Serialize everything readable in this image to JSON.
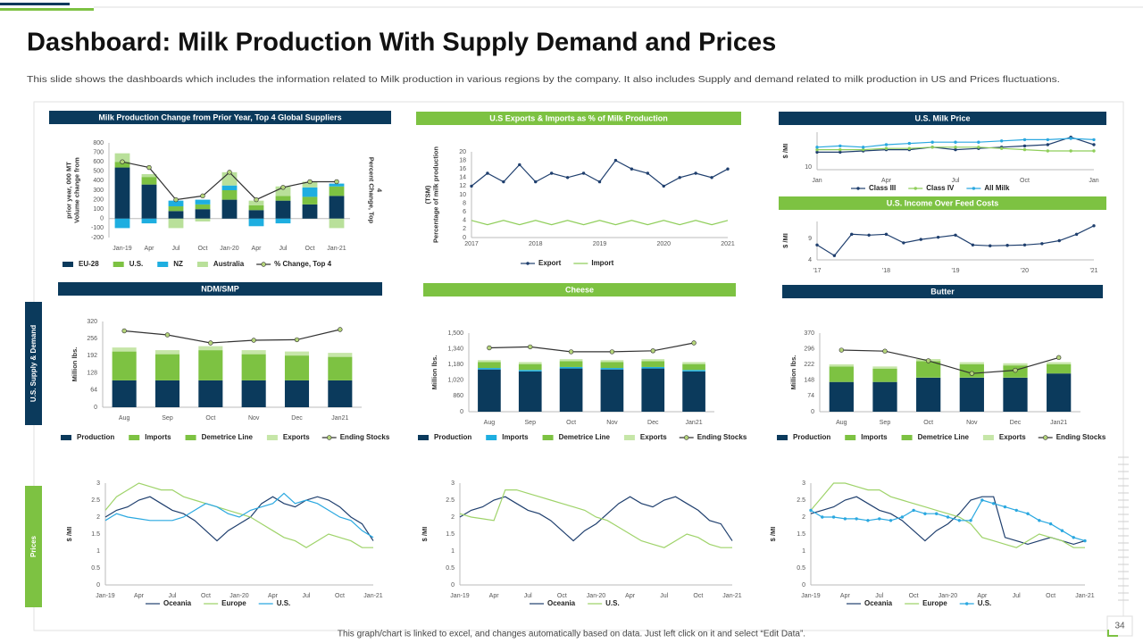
{
  "title": "Dashboard: Milk Production With Supply Demand and Prices",
  "subtitle": "This slide shows the dashboards which includes the information related to Milk production in various regions by the company. It also includes Supply and demand related to milk production in US and Prices fluctuations.",
  "side_labels": [
    "U.S. Supply & Demand",
    "Prices"
  ],
  "footer": "This graph/chart is linked to excel, and changes automatically based on data. Just left click on it and select “Edit Data”.",
  "page_number": 34,
  "chart_data": [
    {
      "type": "combo",
      "title": "Milk Production Change from Prior Year, Top 4 Global Suppliers",
      "header_color": "#0b3a5c",
      "ylabel": [
        "Volume change from",
        "prior year, 000 MT"
      ],
      "y2label": [
        "Percent Change, Top",
        "4"
      ],
      "categories": [
        "Jan-19",
        "Apr",
        "Jul",
        "Oct",
        "Jan-20",
        "Apr",
        "Jul",
        "Oct",
        "Jan-21"
      ],
      "ylim": [
        -200,
        800
      ],
      "yticks": [
        -200,
        -100,
        0,
        100,
        200,
        300,
        400,
        500,
        600,
        700,
        800
      ],
      "series": [
        {
          "name": "EU-28",
          "type": "bar",
          "color": "#0b3a5c",
          "values": [
            540,
            360,
            80,
            100,
            200,
            90,
            190,
            150,
            240
          ]
        },
        {
          "name": "U.S.",
          "type": "bar",
          "color": "#7dc242",
          "values": [
            60,
            80,
            50,
            50,
            100,
            50,
            50,
            80,
            100
          ]
        },
        {
          "name": "NZ",
          "type": "bar",
          "color": "#1eaee0",
          "values": [
            -100,
            -50,
            60,
            50,
            50,
            -80,
            -50,
            100,
            30
          ]
        },
        {
          "name": "Australia",
          "type": "bar",
          "color": "#b9e09a",
          "values": [
            90,
            30,
            -100,
            -30,
            140,
            50,
            100,
            60,
            -100
          ]
        },
        {
          "name": "% Change, Top 4",
          "type": "line",
          "marker": true,
          "color": "#333333",
          "values": [
            600,
            540,
            200,
            240,
            490,
            200,
            330,
            390,
            390
          ]
        }
      ]
    },
    {
      "type": "line",
      "title": "U.S Exports & Imports as % of Milk Production",
      "header_color": "#7dc242",
      "ylabel": [
        "Percentage of milk production",
        "(TSM)"
      ],
      "x": [
        2017,
        2017.25,
        2017.5,
        2017.75,
        2018,
        2018.25,
        2018.5,
        2018.75,
        2019,
        2019.25,
        2019.5,
        2019.75,
        2020,
        2020.25,
        2020.5,
        2020.75,
        2021
      ],
      "xlim": [
        2017,
        2021
      ],
      "xticks": [
        2017,
        2018,
        2019,
        2020,
        2021
      ],
      "ylim": [
        0,
        20
      ],
      "yticks": [
        0,
        2,
        4,
        6,
        8,
        10,
        12,
        14,
        16,
        18,
        20
      ],
      "series": [
        {
          "name": "Export",
          "type": "line",
          "marker": true,
          "color": "#1f3f6e",
          "values": [
            12,
            15,
            13,
            17,
            13,
            15,
            14,
            15,
            13,
            18,
            16,
            15,
            12,
            14,
            15,
            14,
            16
          ]
        },
        {
          "name": "Import",
          "type": "line",
          "color": "#8fce5a",
          "values": [
            4,
            3,
            4,
            3,
            4,
            3,
            4,
            3,
            4,
            3,
            4,
            3,
            4,
            3,
            4,
            3,
            4
          ]
        }
      ]
    },
    {
      "type": "line",
      "title": "U.S. Milk Price",
      "header_color": "#0b3a5c",
      "ylabel": [
        "$ /MI"
      ],
      "categories": [
        "Jan",
        null,
        null,
        "Apr",
        null,
        null,
        "Jul",
        null,
        null,
        "Oct",
        null,
        null,
        "Jan"
      ],
      "ylim": [
        9,
        24
      ],
      "yticks": [
        10
      ],
      "series": [
        {
          "name": "Class III",
          "type": "line",
          "marker": true,
          "color": "#1f3f6e",
          "values": [
            16,
            16,
            16.5,
            17,
            17,
            18,
            17,
            17.5,
            18,
            18.5,
            19,
            22,
            19
          ]
        },
        {
          "name": "Class IV",
          "type": "line",
          "marker": true,
          "color": "#8fce5a",
          "values": [
            17,
            17,
            17,
            17.5,
            17.5,
            18,
            18,
            18,
            17.5,
            17,
            16.5,
            16.5,
            16.5
          ]
        },
        {
          "name": "All Milk",
          "type": "line",
          "marker": true,
          "color": "#2aa8e0",
          "values": [
            18,
            18.5,
            18,
            19,
            19.5,
            20,
            20,
            20,
            20.5,
            21,
            21,
            21.5,
            21
          ]
        }
      ]
    },
    {
      "type": "line",
      "title": "U.S. Income Over Feed Costs",
      "header_color": "#7dc242",
      "ylabel": [
        "$ /MI"
      ],
      "categories": [
        "'17",
        null,
        null,
        null,
        "'18",
        null,
        null,
        null,
        "'19",
        null,
        null,
        null,
        "'20",
        null,
        null,
        null,
        "'21"
      ],
      "ylim": [
        4,
        13
      ],
      "yticks": [
        4,
        9
      ],
      "series": [
        {
          "name": "Income Over Feed Costs",
          "type": "line",
          "marker": true,
          "legend": false,
          "color": "#1f3f6e",
          "values": [
            7.5,
            5,
            10,
            9.8,
            10,
            8,
            8.8,
            9.3,
            9.8,
            7.5,
            7.3,
            7.4,
            7.5,
            7.8,
            8.5,
            10,
            12
          ]
        }
      ]
    },
    {
      "type": "combo",
      "title": "NDM/SMP",
      "header_color": "#0b3a5c",
      "ylabel": [
        "Million lbs."
      ],
      "categories": [
        "Aug",
        "Sep",
        "Oct",
        "Nov",
        "Dec",
        "Jan21"
      ],
      "ylim": [
        0,
        320
      ],
      "yticks": [
        0,
        64,
        128,
        192,
        256,
        320
      ],
      "series": [
        {
          "name": "Production",
          "type": "bar",
          "color": "#0b3a5c",
          "values": [
            100,
            100,
            100,
            100,
            100,
            100
          ]
        },
        {
          "name": "Imports",
          "type": "bar",
          "color": "#7dc242",
          "values": [
            3,
            3,
            3,
            3,
            3,
            3
          ]
        },
        {
          "name": "Demetrice Line",
          "type": "bar",
          "color": "#7dc242",
          "values": [
            105,
            95,
            110,
            95,
            90,
            85
          ]
        },
        {
          "name": "Exports",
          "type": "bar",
          "color": "#c6e6a8",
          "values": [
            15,
            15,
            15,
            15,
            15,
            15
          ]
        },
        {
          "name": "Ending Stocks",
          "type": "line",
          "marker": true,
          "color": "#333333",
          "values": [
            285,
            270,
            240,
            250,
            252,
            290
          ]
        }
      ]
    },
    {
      "type": "combo",
      "title": "Cheese",
      "header_color": "#7dc242",
      "ylabel": [
        "Million lbs."
      ],
      "categories": [
        "Aug",
        "Sep",
        "Oct",
        "Nov",
        "Dec",
        "Jan21"
      ],
      "ylim": [
        700,
        1500
      ],
      "ybreak_label": 0,
      "yticks": [
        860,
        {
          "value": 1020,
          "label": "1,020"
        },
        {
          "value": 1180,
          "label": "1,180"
        },
        {
          "value": 1340,
          "label": "1,340"
        },
        {
          "value": 1500,
          "label": "1,500"
        }
      ],
      "series": [
        {
          "name": "Production",
          "type": "bar",
          "color": "#0b3a5c",
          "values": [
            430,
            410,
            440,
            430,
            440,
            410
          ]
        },
        {
          "name": "Imports",
          "type": "bar",
          "color": "#1eaee0",
          "values": [
            15,
            15,
            15,
            15,
            15,
            15
          ]
        },
        {
          "name": "Demetrice Line",
          "type": "bar",
          "color": "#7dc242",
          "values": [
            60,
            60,
            60,
            60,
            60,
            60
          ]
        },
        {
          "name": "Exports",
          "type": "bar",
          "color": "#c6e6a8",
          "values": [
            20,
            20,
            20,
            20,
            20,
            20
          ]
        },
        {
          "name": "Ending Stocks",
          "type": "line",
          "marker": true,
          "color": "#333333",
          "values": [
            1350,
            1360,
            1310,
            1310,
            1320,
            1400
          ]
        }
      ]
    },
    {
      "type": "combo",
      "title": "Butter",
      "header_color": "#0b3a5c",
      "ylabel": [
        "Million lbs."
      ],
      "categories": [
        "Aug",
        "Sep",
        "Oct",
        "Nov",
        "Dec",
        "Jan21"
      ],
      "ylim": [
        0,
        370
      ],
      "yticks": [
        0,
        74,
        148,
        222,
        296,
        370
      ],
      "series": [
        {
          "name": "Production",
          "type": "bar",
          "color": "#0b3a5c",
          "values": [
            140,
            140,
            160,
            160,
            160,
            180
          ]
        },
        {
          "name": "Imports",
          "type": "bar",
          "color": "#7dc242",
          "values": [
            3,
            3,
            3,
            3,
            3,
            3
          ]
        },
        {
          "name": "Demetrice Line",
          "type": "bar",
          "color": "#7dc242",
          "values": [
            70,
            60,
            75,
            60,
            55,
            40
          ]
        },
        {
          "name": "Exports",
          "type": "bar",
          "color": "#c6e6a8",
          "values": [
            10,
            10,
            10,
            10,
            10,
            10
          ]
        },
        {
          "name": "Ending Stocks",
          "type": "line",
          "marker": true,
          "color": "#333333",
          "values": [
            290,
            285,
            240,
            180,
            195,
            255
          ]
        }
      ]
    },
    {
      "type": "line",
      "ylabel": [
        "$ /MI"
      ],
      "categories": [
        "Jan-19",
        null,
        null,
        "Apr",
        null,
        null,
        "Jul",
        null,
        null,
        "Oct",
        null,
        null,
        "Jan-20",
        null,
        null,
        "Apr",
        null,
        null,
        "Jul",
        null,
        null,
        "Oct",
        null,
        null,
        "Jan-21"
      ],
      "ylim": [
        0,
        3
      ],
      "yticks": [
        0,
        0.5,
        1,
        1.5,
        2,
        2.5,
        3
      ],
      "series": [
        {
          "name": "Oceania",
          "type": "line",
          "color": "#1f3f6e",
          "values": [
            2.0,
            2.2,
            2.3,
            2.5,
            2.6,
            2.4,
            2.2,
            2.1,
            1.9,
            1.6,
            1.3,
            1.6,
            1.8,
            2.0,
            2.4,
            2.6,
            2.4,
            2.3,
            2.5,
            2.6,
            2.5,
            2.3,
            2.0,
            1.8,
            1.3
          ]
        },
        {
          "name": "Europe",
          "type": "line",
          "color": "#9fd36a",
          "values": [
            2.2,
            2.6,
            2.8,
            3.0,
            2.9,
            2.8,
            2.8,
            2.6,
            2.5,
            2.4,
            2.3,
            2.2,
            2.1,
            2.0,
            1.8,
            1.6,
            1.4,
            1.3,
            1.1,
            1.3,
            1.5,
            1.4,
            1.3,
            1.1,
            1.1
          ]
        },
        {
          "name": "U.S.",
          "type": "line",
          "color": "#2aa8e0",
          "values": [
            1.9,
            2.1,
            2.0,
            1.95,
            1.9,
            1.9,
            1.9,
            2.0,
            2.2,
            2.4,
            2.3,
            2.1,
            2.0,
            2.2,
            2.3,
            2.4,
            2.7,
            2.4,
            2.5,
            2.4,
            2.2,
            2.0,
            1.9,
            1.6,
            1.4
          ]
        }
      ]
    },
    {
      "type": "line",
      "ylabel": [
        "$ /MI"
      ],
      "categories": [
        "Jan-19",
        null,
        null,
        "Apr",
        null,
        null,
        "Jul",
        null,
        null,
        "Oct",
        null,
        null,
        "Jan-20",
        null,
        null,
        "Apr",
        null,
        null,
        "Jul",
        null,
        null,
        "Oct",
        null,
        null,
        "Jan-21"
      ],
      "ylim": [
        0,
        3
      ],
      "yticks": [
        0,
        0.5,
        1,
        1.5,
        2,
        2.5,
        3
      ],
      "series": [
        {
          "name": "Oceania",
          "type": "line",
          "color": "#1f3f6e",
          "values": [
            2.0,
            2.2,
            2.3,
            2.5,
            2.6,
            2.4,
            2.2,
            2.1,
            1.9,
            1.6,
            1.3,
            1.6,
            1.8,
            2.1,
            2.4,
            2.6,
            2.4,
            2.3,
            2.5,
            2.6,
            2.4,
            2.2,
            1.9,
            1.8,
            1.3
          ]
        },
        {
          "name": "U.S.",
          "type": "line",
          "color": "#9fd36a",
          "values": [
            2.1,
            2.0,
            1.95,
            1.9,
            2.8,
            2.8,
            2.7,
            2.6,
            2.5,
            2.4,
            2.3,
            2.2,
            2.0,
            1.9,
            1.7,
            1.5,
            1.3,
            1.2,
            1.1,
            1.3,
            1.5,
            1.4,
            1.2,
            1.1,
            1.1
          ]
        }
      ]
    },
    {
      "type": "line",
      "ylabel": [
        "$ /MI"
      ],
      "categories": [
        "Jan-19",
        null,
        null,
        "Apr",
        null,
        null,
        "Jul",
        null,
        null,
        "Oct",
        null,
        null,
        "Jan-20",
        null,
        null,
        "Apr",
        null,
        null,
        "Jul",
        null,
        null,
        "Oct",
        null,
        null,
        "Jan-21"
      ],
      "ylim": [
        0,
        3
      ],
      "yticks": [
        0,
        0.5,
        1,
        1.5,
        2,
        2.5,
        3
      ],
      "series": [
        {
          "name": "Oceania",
          "type": "line",
          "color": "#1f3f6e",
          "values": [
            2.1,
            2.2,
            2.3,
            2.5,
            2.6,
            2.4,
            2.2,
            2.1,
            1.9,
            1.6,
            1.3,
            1.6,
            1.8,
            2.1,
            2.5,
            2.6,
            2.6,
            1.4,
            1.3,
            1.2,
            1.3,
            1.4,
            1.3,
            1.2,
            1.3
          ]
        },
        {
          "name": "Europe",
          "type": "line",
          "color": "#9fd36a",
          "values": [
            2.2,
            2.6,
            3.0,
            3.0,
            2.9,
            2.8,
            2.8,
            2.6,
            2.5,
            2.4,
            2.3,
            2.2,
            2.1,
            2.0,
            1.8,
            1.4,
            1.3,
            1.2,
            1.1,
            1.3,
            1.5,
            1.4,
            1.3,
            1.1,
            1.1
          ]
        },
        {
          "name": "U.S.",
          "type": "line",
          "marker": true,
          "color": "#2aa8e0",
          "values": [
            2.2,
            2.0,
            2.0,
            1.95,
            1.95,
            1.9,
            1.95,
            1.9,
            2.0,
            2.2,
            2.1,
            2.1,
            2.0,
            1.9,
            1.9,
            2.5,
            2.4,
            2.3,
            2.2,
            2.1,
            1.9,
            1.8,
            1.6,
            1.4,
            1.3
          ]
        }
      ]
    }
  ]
}
